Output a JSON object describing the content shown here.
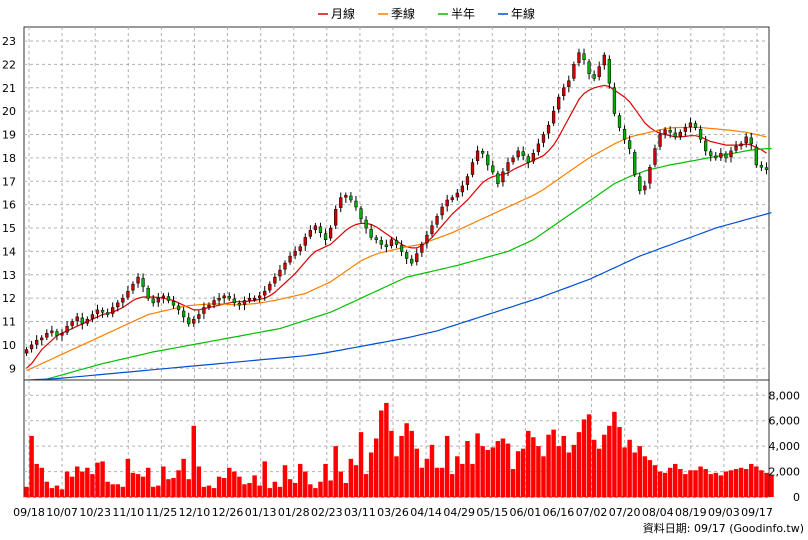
{
  "chart_data": [
    {
      "type": "candlestick",
      "title": "",
      "legend": [
        {
          "name": "月線",
          "color": "#e00000"
        },
        {
          "name": "季線",
          "color": "#ff7f00"
        },
        {
          "name": "半年",
          "color": "#00c000"
        },
        {
          "name": "年線",
          "color": "#0050d0"
        }
      ],
      "legend_placement": "top-center",
      "ylim": [
        8.5,
        23.6
      ],
      "yticks": [
        "9",
        "10",
        "11",
        "12",
        "13",
        "14",
        "15",
        "16",
        "17",
        "18",
        "19",
        "20",
        "21",
        "22",
        "23"
      ],
      "grid": true,
      "up_color": "#d00000",
      "down_color": "#00b000",
      "closes": [
        9.8,
        10,
        10.2,
        10.3,
        10.5,
        10.6,
        10.4,
        10.5,
        10.8,
        11,
        11.2,
        10.9,
        11.1,
        11.3,
        11.5,
        11.4,
        11.3,
        11.6,
        11.8,
        12,
        12.3,
        12.6,
        12.9,
        12.5,
        12,
        11.8,
        12,
        12.1,
        11.9,
        11.7,
        11.5,
        11.2,
        10.9,
        11.1,
        11.3,
        11.6,
        11.7,
        11.9,
        12,
        12.1,
        12,
        11.8,
        11.7,
        11.9,
        12,
        12,
        12.1,
        12.3,
        12.6,
        12.9,
        13.2,
        13.5,
        13.8,
        14,
        14.2,
        14.6,
        14.9,
        15.1,
        14.8,
        14.5,
        15,
        15.8,
        16.3,
        16.4,
        16.2,
        15.9,
        15.4,
        15,
        14.6,
        14.5,
        14.3,
        14.2,
        14.5,
        14.3,
        14,
        13.7,
        13.5,
        13.9,
        14.3,
        14.7,
        15.1,
        15.5,
        15.9,
        16.2,
        16.3,
        16.5,
        16.8,
        17.2,
        17.8,
        18.3,
        18.2,
        17.7,
        17.4,
        16.9,
        17.4,
        17.8,
        18,
        18.3,
        18.1,
        17.8,
        18.2,
        18.6,
        19,
        19.4,
        20,
        20.6,
        21,
        21.3,
        22,
        22.5,
        22.2,
        21.6,
        21.4,
        21.9,
        22.4,
        21.2,
        19.9,
        19.3,
        18.8,
        18.4,
        17.3,
        16.6,
        16.8,
        17.6,
        18.4,
        19,
        19.2,
        19.1,
        18.9,
        19.1,
        19.3,
        19.5,
        19.3,
        18.8,
        18.3,
        18.1,
        18,
        18.2,
        18,
        18.3,
        18.5,
        18.6,
        18.9,
        18.6,
        17.7,
        17.6,
        17.5
      ],
      "ma_series": [
        {
          "name": "月線",
          "values": [
            9,
            9.2,
            9.5,
            9.8,
            10,
            10.2,
            10.4,
            10.5,
            10.6,
            10.7,
            10.8,
            10.9,
            11,
            11.1,
            11.2,
            11.3,
            11.35,
            11.4,
            11.5,
            11.6,
            11.75,
            11.9,
            12,
            12.05,
            12.05,
            12.05,
            12.03,
            12,
            11.95,
            11.9,
            11.8,
            11.7,
            11.6,
            11.5,
            11.5,
            11.55,
            11.6,
            11.65,
            11.7,
            11.75,
            11.8,
            11.85,
            11.85,
            11.85,
            11.88,
            11.9,
            11.95,
            12,
            12.1,
            12.25,
            12.45,
            12.65,
            12.85,
            13.05,
            13.3,
            13.55,
            13.8,
            14,
            14.1,
            14.2,
            14.3,
            14.5,
            14.7,
            14.9,
            15.05,
            15.15,
            15.2,
            15.2,
            15.15,
            15.05,
            14.9,
            14.75,
            14.6,
            14.45,
            14.3,
            14.2,
            14.15,
            14.15,
            14.25,
            14.4,
            14.6,
            14.85,
            15.1,
            15.35,
            15.6,
            15.8,
            16,
            16.2,
            16.45,
            16.7,
            16.95,
            17.1,
            17.2,
            17.25,
            17.3,
            17.35,
            17.5,
            17.6,
            17.7,
            17.8,
            17.9,
            18,
            18.1,
            18.3,
            18.55,
            18.9,
            19.3,
            19.7,
            20.1,
            20.5,
            20.75,
            20.9,
            21,
            21.05,
            21.1,
            21.05,
            20.9,
            20.75,
            20.6,
            20.4,
            20.1,
            19.8,
            19.5,
            19.3,
            19.15,
            19.05,
            19,
            18.95,
            18.9,
            18.9,
            18.92,
            18.95,
            18.95,
            18.9,
            18.8,
            18.7,
            18.65,
            18.6,
            18.55,
            18.55,
            18.55,
            18.55,
            18.6,
            18.55,
            18.45,
            18.35,
            18.2
          ]
        },
        {
          "name": "季線",
          "values": [
            8.9,
            9,
            9.1,
            9.2,
            9.3,
            9.4,
            9.5,
            9.6,
            9.7,
            9.8,
            9.9,
            10,
            10.1,
            10.2,
            10.3,
            10.4,
            10.5,
            10.6,
            10.7,
            10.8,
            10.9,
            11,
            11.1,
            11.2,
            11.3,
            11.35,
            11.4,
            11.45,
            11.5,
            11.55,
            11.6,
            11.65,
            11.68,
            11.7,
            11.72,
            11.73,
            11.75,
            11.75,
            11.75,
            11.75,
            11.73,
            11.72,
            11.72,
            11.73,
            11.75,
            11.77,
            11.8,
            11.83,
            11.87,
            11.9,
            11.95,
            12,
            12.05,
            12.1,
            12.15,
            12.2,
            12.3,
            12.4,
            12.5,
            12.6,
            12.7,
            12.85,
            13,
            13.15,
            13.3,
            13.45,
            13.6,
            13.7,
            13.8,
            13.88,
            13.95,
            14,
            14.05,
            14.1,
            14.15,
            14.2,
            14.23,
            14.27,
            14.32,
            14.4,
            14.48,
            14.56,
            14.64,
            14.72,
            14.8,
            14.9,
            15,
            15.1,
            15.2,
            15.3,
            15.4,
            15.5,
            15.6,
            15.7,
            15.8,
            15.9,
            16,
            16.1,
            16.2,
            16.3,
            16.4,
            16.52,
            16.65,
            16.8,
            16.95,
            17.1,
            17.25,
            17.4,
            17.55,
            17.7,
            17.85,
            18,
            18.12,
            18.24,
            18.36,
            18.48,
            18.6,
            18.7,
            18.8,
            18.88,
            18.95,
            19,
            19.05,
            19.1,
            19.15,
            19.2,
            19.25,
            19.28,
            19.3,
            19.3,
            19.3,
            19.3,
            19.3,
            19.3,
            19.28,
            19.26,
            19.24,
            19.22,
            19.2,
            19.18,
            19.15,
            19.12,
            19.1,
            19.05,
            19,
            18.95,
            18.9
          ]
        },
        {
          "name": "半年",
          "values": [
            8.3,
            8.36,
            8.42,
            8.48,
            8.54,
            8.6,
            8.66,
            8.72,
            8.78,
            8.84,
            8.9,
            8.96,
            9.02,
            9.08,
            9.14,
            9.2,
            9.25,
            9.3,
            9.35,
            9.4,
            9.45,
            9.5,
            9.55,
            9.6,
            9.65,
            9.7,
            9.74,
            9.78,
            9.82,
            9.86,
            9.9,
            9.94,
            9.98,
            10.02,
            10.06,
            10.1,
            10.14,
            10.18,
            10.22,
            10.26,
            10.3,
            10.34,
            10.38,
            10.42,
            10.46,
            10.5,
            10.54,
            10.58,
            10.62,
            10.66,
            10.7,
            10.77,
            10.84,
            10.91,
            10.98,
            11.05,
            11.12,
            11.19,
            11.26,
            11.33,
            11.4,
            11.5,
            11.6,
            11.7,
            11.8,
            11.9,
            12,
            12.1,
            12.2,
            12.3,
            12.4,
            12.5,
            12.6,
            12.7,
            12.8,
            12.9,
            12.95,
            13,
            13.05,
            13.1,
            13.15,
            13.2,
            13.25,
            13.3,
            13.35,
            13.4,
            13.46,
            13.52,
            13.58,
            13.64,
            13.7,
            13.76,
            13.82,
            13.88,
            13.94,
            14,
            14.1,
            14.2,
            14.3,
            14.4,
            14.5,
            14.65,
            14.8,
            14.95,
            15.1,
            15.25,
            15.4,
            15.55,
            15.7,
            15.85,
            16,
            16.15,
            16.3,
            16.45,
            16.6,
            16.75,
            16.9,
            17,
            17.1,
            17.2,
            17.28,
            17.36,
            17.44,
            17.5,
            17.55,
            17.6,
            17.65,
            17.7,
            17.74,
            17.78,
            17.82,
            17.86,
            17.9,
            17.94,
            17.98,
            18.02,
            18.06,
            18.1,
            18.14,
            18.18,
            18.22,
            18.26,
            18.3,
            18.34,
            18.36,
            18.38,
            18.4,
            18.4
          ]
        },
        {
          "name": "年線",
          "values": [
            8.5,
            8.51,
            8.52,
            8.53,
            8.54,
            8.55,
            8.56,
            8.58,
            8.6,
            8.62,
            8.64,
            8.66,
            8.68,
            8.7,
            8.72,
            8.74,
            8.76,
            8.78,
            8.8,
            8.82,
            8.84,
            8.86,
            8.88,
            8.9,
            8.92,
            8.94,
            8.96,
            8.98,
            9,
            9.02,
            9.04,
            9.06,
            9.08,
            9.1,
            9.12,
            9.14,
            9.16,
            9.18,
            9.2,
            9.22,
            9.24,
            9.26,
            9.28,
            9.3,
            9.32,
            9.34,
            9.36,
            9.38,
            9.4,
            9.42,
            9.44,
            9.46,
            9.48,
            9.5,
            9.52,
            9.54,
            9.57,
            9.6,
            9.63,
            9.66,
            9.7,
            9.74,
            9.78,
            9.82,
            9.86,
            9.9,
            9.94,
            9.98,
            10.02,
            10.06,
            10.1,
            10.14,
            10.18,
            10.22,
            10.26,
            10.3,
            10.35,
            10.4,
            10.45,
            10.5,
            10.55,
            10.6,
            10.67,
            10.74,
            10.81,
            10.88,
            10.95,
            11.02,
            11.09,
            11.16,
            11.23,
            11.3,
            11.37,
            11.44,
            11.51,
            11.58,
            11.65,
            11.72,
            11.79,
            11.86,
            11.93,
            12,
            12.08,
            12.16,
            12.24,
            12.32,
            12.4,
            12.48,
            12.56,
            12.64,
            12.72,
            12.8,
            12.9,
            13,
            13.1,
            13.2,
            13.3,
            13.4,
            13.5,
            13.6,
            13.7,
            13.8,
            13.88,
            13.96,
            14.04,
            14.12,
            14.2,
            14.28,
            14.36,
            14.44,
            14.52,
            14.6,
            14.68,
            14.76,
            14.84,
            14.92,
            15,
            15.06,
            15.12,
            15.18,
            15.24,
            15.3,
            15.36,
            15.42,
            15.48,
            15.54,
            15.6,
            15.66
          ]
        }
      ]
    },
    {
      "type": "bar",
      "series_name": "",
      "bar_color": "#ff0000",
      "ylim": [
        0,
        9200
      ],
      "yticks": [
        "0",
        "2,000",
        "4,000",
        "6,000",
        "8,000"
      ],
      "ytick_values": [
        0,
        2000,
        4000,
        6000,
        8000
      ],
      "grid": true,
      "values": [
        800,
        4800,
        2600,
        2300,
        1200,
        700,
        900,
        600,
        2000,
        1600,
        2400,
        2000,
        2300,
        1800,
        2700,
        2800,
        1200,
        1000,
        1000,
        800,
        3000,
        1900,
        1800,
        1600,
        2300,
        800,
        900,
        2400,
        1400,
        1500,
        2100,
        3000,
        1400,
        5600,
        2400,
        800,
        900,
        700,
        1600,
        1500,
        2300,
        2000,
        1600,
        1000,
        1100,
        1700,
        900,
        2800,
        700,
        1200,
        800,
        2500,
        1400,
        1100,
        2600,
        2000,
        1000,
        700,
        1200,
        2600,
        1300,
        4000,
        2000,
        1100,
        3000,
        2500,
        5100,
        1800,
        3500,
        4600,
        6800,
        7400,
        5200,
        3200,
        4800,
        5800,
        5200,
        3800,
        2300,
        3000,
        4100,
        2300,
        2300,
        4800,
        1800,
        3200,
        2600,
        4400,
        2600,
        5000,
        4000,
        3700,
        3900,
        4400,
        4600,
        4200,
        2200,
        3600,
        3800,
        5200,
        4700,
        4000,
        3200,
        4900,
        5300,
        4000,
        4800,
        3500,
        4100,
        5100,
        6100,
        6500,
        4500,
        3800,
        4900,
        5600,
        6700,
        5500,
        3900,
        4500,
        3500,
        4000,
        3200,
        2900,
        2500,
        2000,
        1900,
        2300,
        2600,
        2200,
        1800,
        2100,
        2100,
        2400,
        2200,
        1800,
        1900,
        1700,
        2000,
        2100,
        2200,
        2300,
        2200,
        2600,
        2400,
        2100,
        1900,
        1700
      ]
    }
  ],
  "x_ticks": [
    "09/18",
    "10/07",
    "10/23",
    "11/10",
    "11/25",
    "12/10",
    "12/26",
    "01/13",
    "01/28",
    "02/23",
    "03/11",
    "03/26",
    "04/14",
    "04/29",
    "05/15",
    "06/01",
    "06/16",
    "07/02",
    "07/20",
    "08/04",
    "08/19",
    "09/03",
    "09/17"
  ],
  "source_label": "資料日期: 09/17 (Goodinfo.tw)",
  "colors": {
    "frame": "#333333",
    "grid": "#b0b0b0",
    "up": "#d00000",
    "down": "#00b000",
    "volume": "#ff0000"
  }
}
